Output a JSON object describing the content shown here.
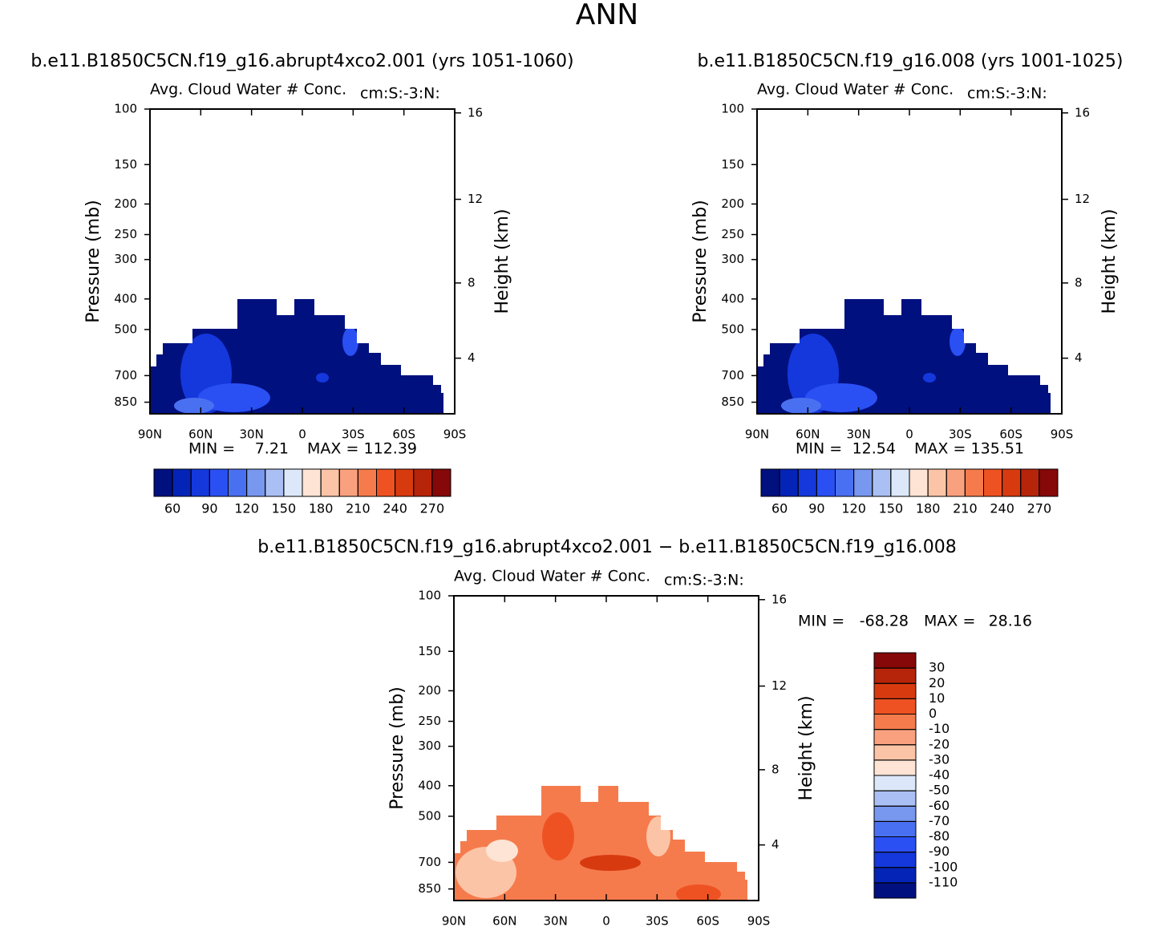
{
  "title": "ANN",
  "chart_data": [
    {
      "type": "contour",
      "subtitle": "b.e11.B1850C5CN.f19_g16.abrupt4xco2.001  (yrs 1051-1060)",
      "title": "Avg. Cloud Water # Conc.",
      "units": "cm:S:-3:N:",
      "ylabel": "Pressure (mb)",
      "y2label": "Height (km)",
      "log_y": true,
      "xlim": [
        90,
        -90
      ],
      "ylim": [
        925,
        100
      ],
      "xticks": [
        {
          "value": 90,
          "label": "90N"
        },
        {
          "value": 60,
          "label": "60N"
        },
        {
          "value": 30,
          "label": "30N"
        },
        0,
        {
          "value": -30,
          "label": "30S"
        },
        {
          "value": -60,
          "label": "60S"
        },
        {
          "value": -90,
          "label": "90S"
        }
      ],
      "yticks": [
        100,
        150,
        200,
        250,
        300,
        400,
        500,
        700,
        850
      ],
      "y2ticks": [
        4,
        8,
        12,
        16
      ],
      "min_label": "MIN =",
      "min": 7.21,
      "max_label": "MAX =",
      "max": 112.39,
      "colorbar_orientation": "horizontal",
      "levels": [
        60,
        75,
        90,
        105,
        120,
        135,
        150,
        165,
        180,
        195,
        210,
        225,
        240,
        255,
        270
      ],
      "colorbar_ticks": [
        60,
        90,
        120,
        150,
        180,
        210,
        240,
        270
      ],
      "level_colors": [
        "#00107f",
        "#0424b8",
        "#1438dc",
        "#2a50f4",
        "#4a70f2",
        "#7897ee",
        "#aac0f4",
        "#dce8fa",
        "#fde4d4",
        "#fcc4a6",
        "#f9a17e",
        "#f57b4d",
        "#ef5222",
        "#d83a10",
        "#b6240a",
        "#860808"
      ]
    },
    {
      "type": "contour",
      "subtitle": "b.e11.B1850C5CN.f19_g16.008  (yrs 1001-1025)",
      "title": "Avg. Cloud Water # Conc.",
      "units": "cm:S:-3:N:",
      "ylabel": "Pressure (mb)",
      "y2label": "Height (km)",
      "log_y": true,
      "xlim": [
        90,
        -90
      ],
      "ylim": [
        925,
        100
      ],
      "xticks": [
        {
          "value": 90,
          "label": "90N"
        },
        {
          "value": 60,
          "label": "60N"
        },
        {
          "value": 30,
          "label": "30N"
        },
        0,
        {
          "value": -30,
          "label": "30S"
        },
        {
          "value": -60,
          "label": "60S"
        },
        {
          "value": -90,
          "label": "90S"
        }
      ],
      "yticks": [
        100,
        150,
        200,
        250,
        300,
        400,
        500,
        700,
        850
      ],
      "y2ticks": [
        4,
        8,
        12,
        16
      ],
      "min_label": "MIN =",
      "min": 12.54,
      "max_label": "MAX =",
      "max": 135.51,
      "colorbar_orientation": "horizontal",
      "levels": [
        60,
        75,
        90,
        105,
        120,
        135,
        150,
        165,
        180,
        195,
        210,
        225,
        240,
        255,
        270
      ],
      "colorbar_ticks": [
        60,
        90,
        120,
        150,
        180,
        210,
        240,
        270
      ],
      "level_colors": [
        "#00107f",
        "#0424b8",
        "#1438dc",
        "#2a50f4",
        "#4a70f2",
        "#7897ee",
        "#aac0f4",
        "#dce8fa",
        "#fde4d4",
        "#fcc4a6",
        "#f9a17e",
        "#f57b4d",
        "#ef5222",
        "#d83a10",
        "#b6240a",
        "#860808"
      ]
    },
    {
      "type": "contour",
      "subtitle": "b.e11.B1850C5CN.f19_g16.abrupt4xco2.001 − b.e11.B1850C5CN.f19_g16.008",
      "title": "Avg. Cloud Water # Conc.",
      "units": "cm:S:-3:N:",
      "ylabel": "Pressure (mb)",
      "y2label": "Height (km)",
      "log_y": true,
      "xlim": [
        90,
        -90
      ],
      "ylim": [
        925,
        100
      ],
      "xticks": [
        {
          "value": 90,
          "label": "90N"
        },
        {
          "value": 60,
          "label": "60N"
        },
        {
          "value": 30,
          "label": "30N"
        },
        0,
        {
          "value": -30,
          "label": "30S"
        },
        {
          "value": -60,
          "label": "60S"
        },
        {
          "value": -90,
          "label": "90S"
        }
      ],
      "yticks": [
        100,
        150,
        200,
        250,
        300,
        400,
        500,
        700,
        850
      ],
      "y2ticks": [
        4,
        8,
        12,
        16
      ],
      "min_label": "MIN =",
      "min": -68.28,
      "max_label": "MAX =",
      "max": 28.16,
      "colorbar_orientation": "vertical",
      "levels": [
        -110,
        -100,
        -90,
        -80,
        -70,
        -60,
        -50,
        -40,
        -30,
        -20,
        -10,
        0,
        10,
        20,
        30
      ],
      "colorbar_ticks": [
        -110,
        -100,
        -90,
        -80,
        -70,
        -60,
        -50,
        -40,
        -30,
        -20,
        -10,
        0,
        10,
        20,
        30
      ],
      "level_colors": [
        "#00107f",
        "#0424b8",
        "#1438dc",
        "#2a50f4",
        "#4a70f2",
        "#7897ee",
        "#aac0f4",
        "#dce8fa",
        "#fde4d4",
        "#fcc4a6",
        "#f9a17e",
        "#f57b4d",
        "#ef5222",
        "#d83a10",
        "#b6240a",
        "#860808"
      ]
    }
  ]
}
